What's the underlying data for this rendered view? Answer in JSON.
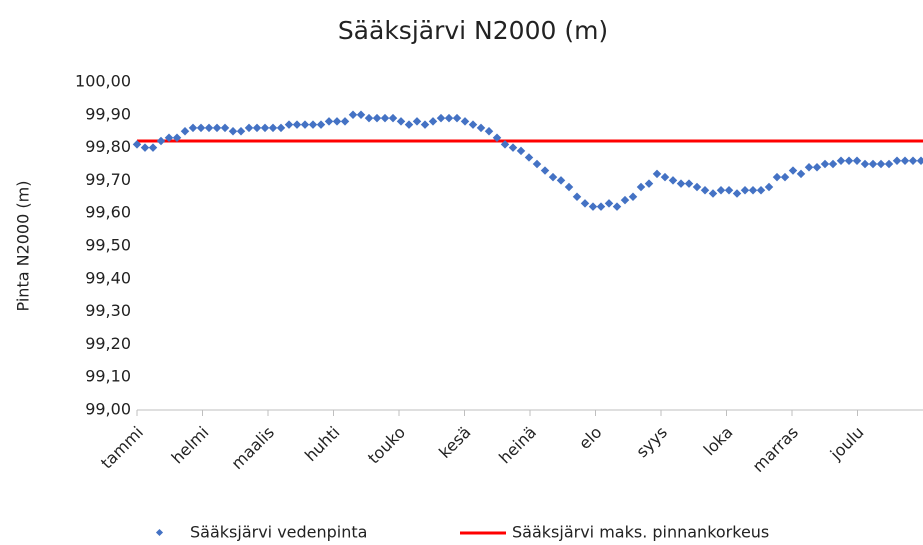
{
  "chart_data": {
    "type": "scatter",
    "title": "Sääksjärvi N2000 (m)",
    "y_label": "Pinta N2000 (m)",
    "categories": [
      "tammi",
      "helmi",
      "maalis",
      "huhti",
      "touko",
      "kesä",
      "heinä",
      "elo",
      "syys",
      "loka",
      "marras",
      "joulu"
    ],
    "ylim": [
      99,
      100
    ],
    "yticks": [
      {
        "value": 99,
        "label": "99,00"
      },
      {
        "value": 99.1,
        "label": "99,10"
      },
      {
        "value": 99.2,
        "label": "99,20"
      },
      {
        "value": 99.3,
        "label": "99,30"
      },
      {
        "value": 99.4,
        "label": "99,40"
      },
      {
        "value": 99.5,
        "label": "99,50"
      },
      {
        "value": 99.6,
        "label": "99,60"
      },
      {
        "value": 99.7,
        "label": "99,70"
      },
      {
        "value": 99.8,
        "label": "99,80"
      },
      {
        "value": 99.9,
        "label": "99,90"
      },
      {
        "value": 100,
        "label": "100,00"
      }
    ],
    "grid": false,
    "series": [
      {
        "name": "Sääksjärvi vedenpinta",
        "color": "#4472c4",
        "values": [
          99.81,
          99.8,
          99.8,
          99.82,
          99.83,
          99.83,
          99.85,
          99.86,
          99.86,
          99.86,
          99.86,
          99.86,
          99.85,
          99.85,
          99.86,
          99.86,
          99.86,
          99.86,
          99.86,
          99.87,
          99.87,
          99.87,
          99.87,
          99.87,
          99.88,
          99.88,
          99.88,
          99.9,
          99.9,
          99.89,
          99.89,
          99.89,
          99.89,
          99.88,
          99.87,
          99.88,
          99.87,
          99.88,
          99.89,
          99.89,
          99.89,
          99.88,
          99.87,
          99.86,
          99.85,
          99.83,
          99.81,
          99.8,
          99.79,
          99.77,
          99.75,
          99.73,
          99.71,
          99.7,
          99.68,
          99.65,
          99.63,
          99.62,
          99.62,
          99.63,
          99.62,
          99.64,
          99.65,
          99.68,
          99.69,
          99.72,
          99.71,
          99.7,
          99.69,
          99.69,
          99.68,
          99.67,
          99.66,
          99.67,
          99.67,
          99.66,
          99.67,
          99.67,
          99.67,
          99.68,
          99.71,
          99.71,
          99.73,
          99.72,
          99.74,
          99.74,
          99.75,
          99.75,
          99.76,
          99.76,
          99.76,
          99.75,
          99.75,
          99.75,
          99.75,
          99.76,
          99.76,
          99.76,
          99.76
        ]
      }
    ],
    "reference_line": {
      "name": "Sääksjärvi maks. pinnankorkeus",
      "color": "#ff0000",
      "value": 99.82
    }
  }
}
